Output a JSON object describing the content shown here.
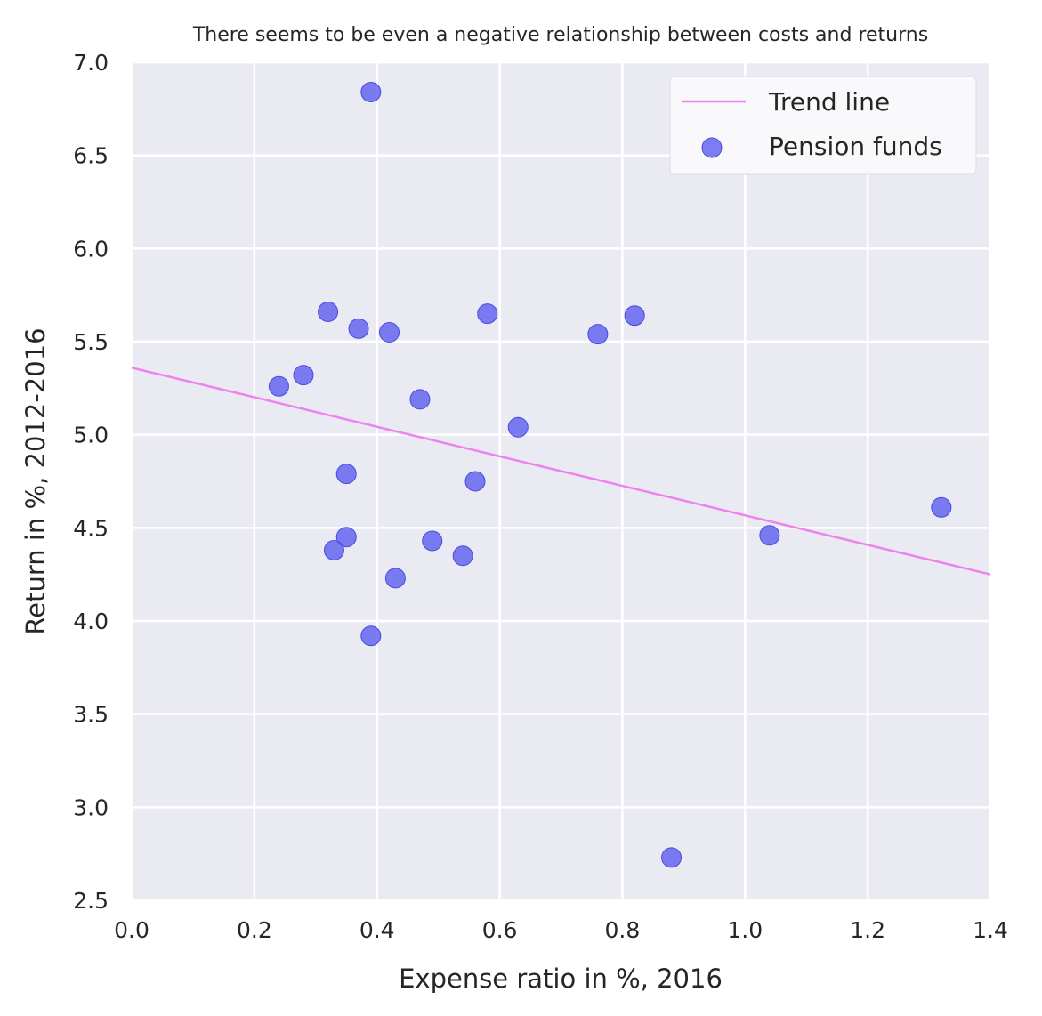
{
  "chart_data": {
    "type": "scatter",
    "title": "There seems to be even a negative relationship between costs and returns",
    "xlabel": "Expense ratio in %, 2016",
    "ylabel": "Return in %, 2012-2016",
    "xlim": [
      0.0,
      1.4
    ],
    "ylim": [
      2.5,
      7.0
    ],
    "xticks": [
      "0.0",
      "0.2",
      "0.4",
      "0.6",
      "0.8",
      "1.0",
      "1.2",
      "1.4"
    ],
    "yticks": [
      "2.5",
      "3.0",
      "3.5",
      "4.0",
      "4.5",
      "5.0",
      "5.5",
      "6.0",
      "6.5",
      "7.0"
    ],
    "grid": true,
    "legend_position": "top-right",
    "series": [
      {
        "name": "Pension funds",
        "kind": "scatter",
        "color": "#5a5af0",
        "points": [
          {
            "x": 0.39,
            "y": 6.84
          },
          {
            "x": 0.32,
            "y": 5.66
          },
          {
            "x": 0.37,
            "y": 5.57
          },
          {
            "x": 0.42,
            "y": 5.55
          },
          {
            "x": 0.58,
            "y": 5.65
          },
          {
            "x": 0.76,
            "y": 5.54
          },
          {
            "x": 0.82,
            "y": 5.64
          },
          {
            "x": 0.24,
            "y": 5.26
          },
          {
            "x": 0.28,
            "y": 5.32
          },
          {
            "x": 0.47,
            "y": 5.19
          },
          {
            "x": 0.63,
            "y": 5.04
          },
          {
            "x": 0.35,
            "y": 4.79
          },
          {
            "x": 0.56,
            "y": 4.75
          },
          {
            "x": 0.35,
            "y": 4.45
          },
          {
            "x": 0.33,
            "y": 4.38
          },
          {
            "x": 0.49,
            "y": 4.43
          },
          {
            "x": 0.54,
            "y": 4.35
          },
          {
            "x": 0.43,
            "y": 4.23
          },
          {
            "x": 0.39,
            "y": 3.92
          },
          {
            "x": 0.88,
            "y": 2.73
          },
          {
            "x": 1.04,
            "y": 4.46
          },
          {
            "x": 1.32,
            "y": 4.61
          }
        ]
      },
      {
        "name": "Trend line",
        "kind": "line",
        "color": "#ee82ee",
        "points": [
          {
            "x": 0.0,
            "y": 5.36
          },
          {
            "x": 1.4,
            "y": 4.25
          }
        ]
      }
    ]
  }
}
